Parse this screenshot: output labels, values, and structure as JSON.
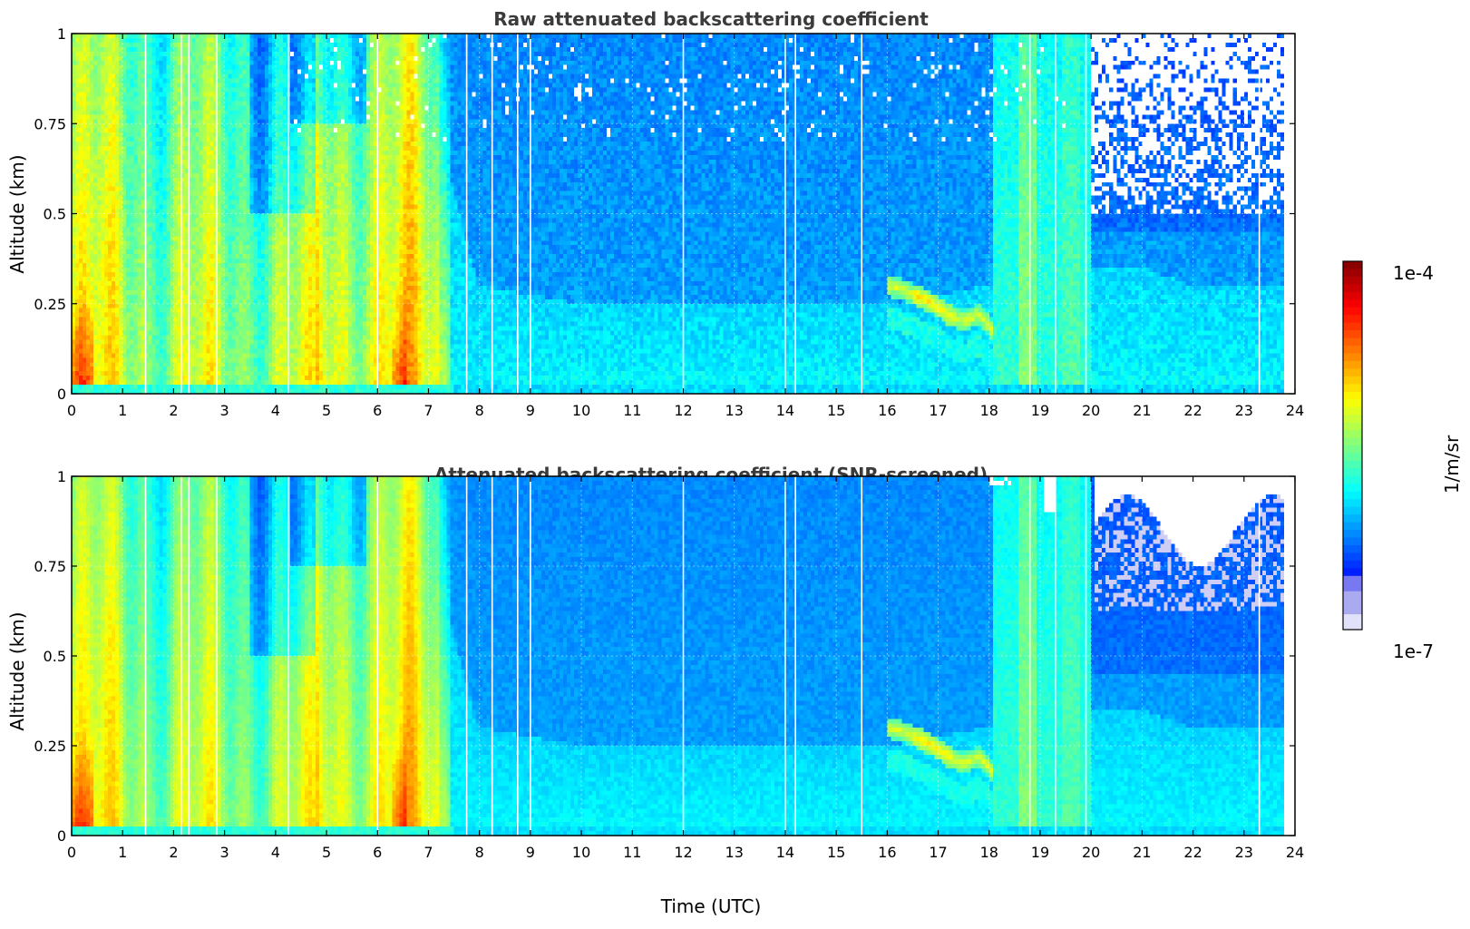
{
  "chart_data": [
    {
      "type": "heatmap",
      "title": "Raw attenuated backscattering coefficient",
      "xlabel": "",
      "ylabel": "Altitude (km)",
      "xlim": [
        0,
        24
      ],
      "ylim": [
        0,
        1
      ],
      "x_ticks": [
        "0",
        "1",
        "2",
        "3",
        "4",
        "5",
        "6",
        "7",
        "8",
        "9",
        "10",
        "11",
        "12",
        "13",
        "14",
        "15",
        "16",
        "17",
        "18",
        "19",
        "20",
        "21",
        "22",
        "23",
        "24"
      ],
      "y_ticks": [
        "0",
        "0.25",
        "0.5",
        "0.75",
        "1"
      ],
      "grid": true,
      "screened": false
    },
    {
      "type": "heatmap",
      "title": "Attenuated backscattering coefficient (SNR-screened)",
      "xlabel": "Time (UTC)",
      "ylabel": "Altitude (km)",
      "xlim": [
        0,
        24
      ],
      "ylim": [
        0,
        1
      ],
      "x_ticks": [
        "0",
        "1",
        "2",
        "3",
        "4",
        "5",
        "6",
        "7",
        "8",
        "9",
        "10",
        "11",
        "12",
        "13",
        "14",
        "15",
        "16",
        "17",
        "18",
        "19",
        "20",
        "21",
        "22",
        "23",
        "24"
      ],
      "y_ticks": [
        "0",
        "0.25",
        "0.5",
        "0.75",
        "1"
      ],
      "grid": true,
      "screened": true
    }
  ],
  "colorbar": {
    "label": "1/m/sr",
    "min_label": "1e-7",
    "max_label": "1e-4",
    "scale": "log",
    "colormap": "jet"
  },
  "data_end_hour": 23.8,
  "features": {
    "gap_hours": [
      1.45,
      2.15,
      2.3,
      2.85,
      4.25,
      6.0,
      7.75,
      8.25,
      8.75,
      9.0,
      12.0,
      14.0,
      14.2,
      15.5,
      18.8,
      19.3,
      19.9,
      23.3
    ],
    "aerosol_layer_top_km": {
      "hours": [
        0,
        1,
        2,
        3,
        4,
        5,
        6,
        7,
        7.5,
        8,
        10,
        12,
        14,
        16,
        18,
        20,
        21,
        22,
        23,
        23.8
      ],
      "km": [
        1.0,
        1.0,
        1.0,
        1.0,
        1.0,
        0.95,
        1.0,
        0.85,
        0.55,
        0.3,
        0.25,
        0.25,
        0.25,
        0.25,
        0.3,
        0.35,
        0.35,
        0.3,
        0.3,
        0.3
      ]
    },
    "elevated_plume": {
      "hours": [
        16.0,
        16.3,
        16.6,
        16.9,
        17.2,
        17.5,
        17.8,
        18.0,
        18.1
      ],
      "km": [
        0.3,
        0.29,
        0.27,
        0.25,
        0.22,
        0.2,
        0.22,
        0.19,
        0.16
      ]
    },
    "fog_columns_hours": [
      [
        18.1,
        20.0
      ]
    ]
  }
}
